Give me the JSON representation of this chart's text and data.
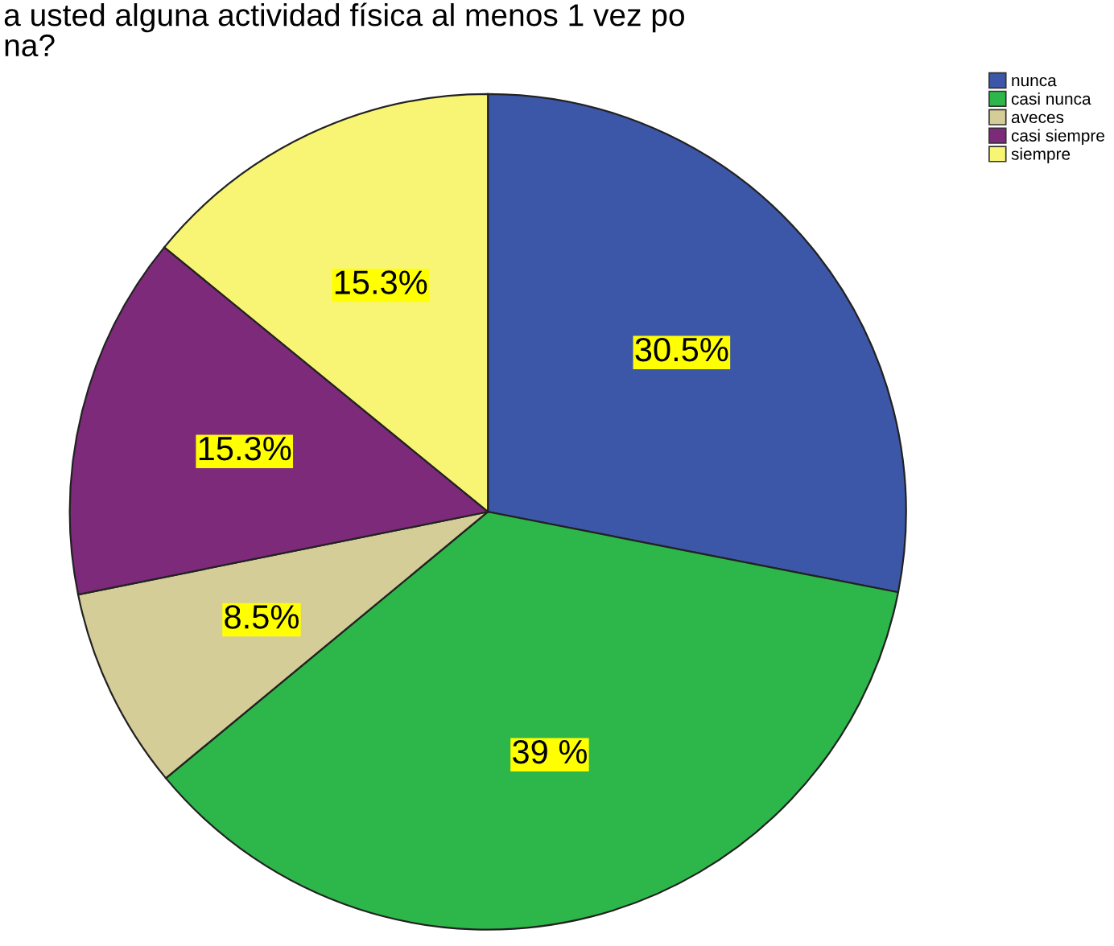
{
  "chart_data": {
    "type": "pie",
    "title": "a usted alguna actividad física al menos 1 vez po\nna?",
    "categories": [
      "nunca",
      "casi nunca",
      "aveces",
      "casi siempre",
      "siempre"
    ],
    "values": [
      30.5,
      39,
      8.5,
      15.3,
      15.3
    ],
    "colors": [
      "#3d57a8",
      "#2db74a",
      "#d4cd98",
      "#7e2a7a",
      "#f8f575"
    ],
    "value_labels": [
      "30.5%",
      "39 %",
      "8.5%",
      "15.3%",
      "15.3%"
    ],
    "legend": "top right"
  }
}
